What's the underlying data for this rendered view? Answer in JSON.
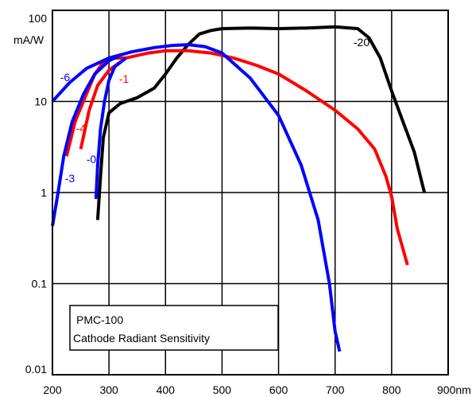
{
  "chart_data": {
    "type": "line",
    "title": "",
    "xlabel": "",
    "ylabel": "mA/W",
    "x_unit": "nm",
    "xlim": [
      200,
      900
    ],
    "ylim": [
      0.01,
      100
    ],
    "y_scale": "log",
    "grid": true,
    "x_ticks": [
      "200",
      "300",
      "400",
      "500",
      "600",
      "700",
      "800",
      "900nm"
    ],
    "y_ticks": [
      "0.01",
      "0.1",
      "1",
      "10",
      "100"
    ],
    "y_unit_label": "mA/W",
    "legend_box": {
      "line1": "PMC-100",
      "line2": "Cathode Radiant Sensitivity",
      "placement": "bottom-left"
    },
    "series": [
      {
        "name": "-20",
        "color": "#000000",
        "points": [
          [
            280,
            0.5
          ],
          [
            285,
            1.5
          ],
          [
            290,
            4
          ],
          [
            300,
            7.5
          ],
          [
            320,
            9.5
          ],
          [
            350,
            11
          ],
          [
            380,
            14
          ],
          [
            400,
            20
          ],
          [
            420,
            30
          ],
          [
            440,
            42
          ],
          [
            460,
            55
          ],
          [
            480,
            60
          ],
          [
            500,
            63
          ],
          [
            550,
            64
          ],
          [
            600,
            63
          ],
          [
            650,
            64
          ],
          [
            700,
            66
          ],
          [
            740,
            63
          ],
          [
            760,
            50
          ],
          [
            780,
            30
          ],
          [
            800,
            13
          ],
          [
            820,
            6
          ],
          [
            840,
            2.8
          ],
          [
            858,
            1
          ]
        ]
      },
      {
        "name": "-1",
        "color": "#ff0000",
        "points": [
          [
            250,
            3
          ],
          [
            265,
            8
          ],
          [
            280,
            15
          ],
          [
            300,
            22
          ],
          [
            330,
            30
          ],
          [
            370,
            34
          ],
          [
            400,
            36
          ],
          [
            440,
            36
          ],
          [
            480,
            34
          ],
          [
            520,
            30
          ],
          [
            560,
            25
          ],
          [
            600,
            20
          ],
          [
            650,
            13
          ],
          [
            700,
            8
          ],
          [
            740,
            5
          ],
          [
            770,
            3
          ],
          [
            790,
            1.5
          ],
          [
            800,
            0.9
          ],
          [
            810,
            0.4
          ],
          [
            828,
            0.16
          ]
        ],
        "label_x": 340,
        "label_y": 17
      },
      {
        "name": "-4",
        "color": "#ff0000",
        "points": [
          [
            225,
            2.5
          ],
          [
            240,
            6
          ],
          [
            260,
            12
          ],
          [
            275,
            20
          ],
          [
            290,
            27
          ],
          [
            310,
            30
          ],
          [
            330,
            30
          ]
        ],
        "label_x": 232,
        "label_y": 4.3
      },
      {
        "name": "-6",
        "color": "#0000ff",
        "points": [
          [
            200,
            10
          ],
          [
            230,
            16
          ],
          [
            260,
            23
          ],
          [
            300,
            30
          ],
          [
            340,
            35
          ],
          [
            380,
            39
          ],
          [
            410,
            41
          ],
          [
            440,
            42
          ],
          [
            470,
            40
          ],
          [
            500,
            34
          ],
          [
            550,
            18
          ],
          [
            600,
            7
          ],
          [
            640,
            2
          ],
          [
            670,
            0.5
          ],
          [
            690,
            0.1
          ],
          [
            700,
            0.03
          ],
          [
            708,
            0.018
          ]
        ],
        "label_x": 208,
        "label_y": 18
      },
      {
        "name": "-3",
        "color": "#0000ff",
        "points": [
          [
            200,
            0.43
          ],
          [
            210,
            1
          ],
          [
            220,
            2.5
          ],
          [
            235,
            6
          ],
          [
            255,
            12
          ],
          [
            275,
            20
          ],
          [
            300,
            28
          ],
          [
            320,
            32
          ]
        ],
        "label_x": 215,
        "label_y": 1.35
      },
      {
        "name": "-0",
        "color": "#0000ff",
        "points": [
          [
            277,
            0.85
          ],
          [
            280,
            2
          ],
          [
            285,
            5
          ],
          [
            292,
            10
          ],
          [
            300,
            17
          ],
          [
            310,
            24
          ],
          [
            330,
            30
          ]
        ],
        "label_x": 245,
        "label_y": 2.3
      }
    ]
  }
}
